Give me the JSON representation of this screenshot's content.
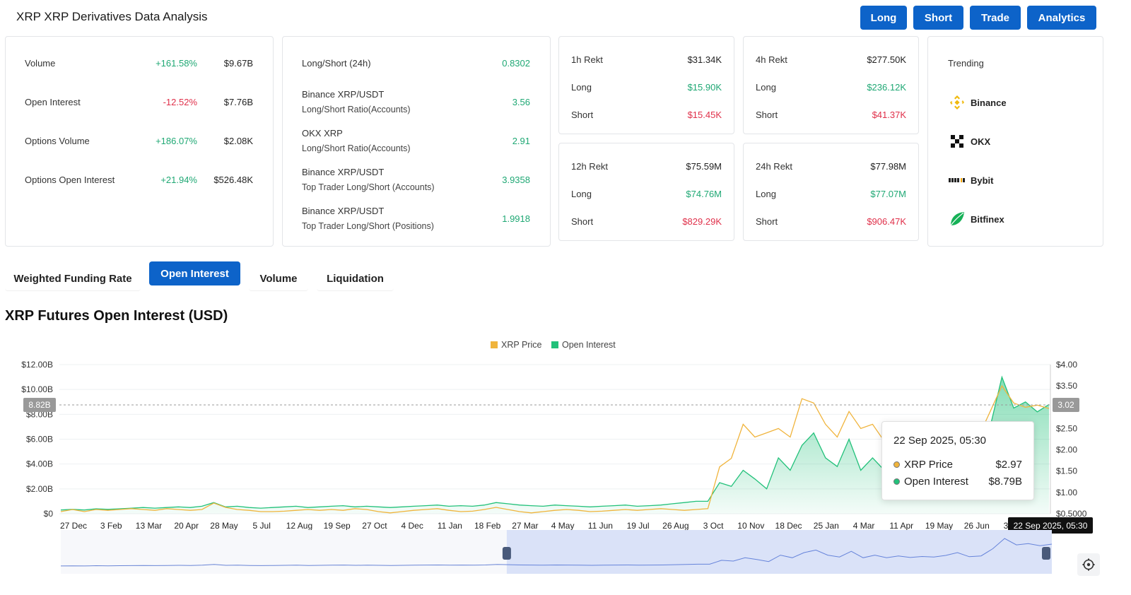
{
  "header": {
    "title": "XRP XRP Derivatives Data Analysis",
    "buttons": [
      "Long",
      "Short",
      "Trade",
      "Analytics"
    ]
  },
  "stats": [
    {
      "label": "Volume",
      "change": "+161.58%",
      "value": "$9.67B",
      "trend": "up"
    },
    {
      "label": "Open Interest",
      "change": "-12.52%",
      "value": "$7.76B",
      "trend": "down"
    },
    {
      "label": "Options Volume",
      "change": "+186.07%",
      "value": "$2.08K",
      "trend": "up"
    },
    {
      "label": "Options Open Interest",
      "change": "+21.94%",
      "value": "$526.48K",
      "trend": "up"
    }
  ],
  "ratios": [
    {
      "label": "Long/Short (24h)",
      "sub": "",
      "value": "0.8302"
    },
    {
      "label": "Binance XRP/USDT",
      "sub": "Long/Short Ratio(Accounts)",
      "value": "3.56"
    },
    {
      "label": "OKX XRP",
      "sub": "Long/Short Ratio(Accounts)",
      "value": "2.91"
    },
    {
      "label": "Binance XRP/USDT",
      "sub": "Top Trader Long/Short (Accounts)",
      "value": "3.9358"
    },
    {
      "label": "Binance XRP/USDT",
      "sub": "Top Trader Long/Short (Positions)",
      "value": "1.9918"
    }
  ],
  "rekt": [
    {
      "label": "1h Rekt",
      "total": "$31.34K",
      "long_label": "Long",
      "long": "$15.90K",
      "short_label": "Short",
      "short": "$15.45K"
    },
    {
      "label": "4h Rekt",
      "total": "$277.50K",
      "long_label": "Long",
      "long": "$236.12K",
      "short_label": "Short",
      "short": "$41.37K"
    },
    {
      "label": "12h Rekt",
      "total": "$75.59M",
      "long_label": "Long",
      "long": "$74.76M",
      "short_label": "Short",
      "short": "$829.29K"
    },
    {
      "label": "24h Rekt",
      "total": "$77.98M",
      "long_label": "Long",
      "long": "$77.07M",
      "short_label": "Short",
      "short": "$906.47K"
    }
  ],
  "trending": {
    "title": "Trending",
    "items": [
      {
        "name": "Binance",
        "icon": "binance-logo-icon"
      },
      {
        "name": "OKX",
        "icon": "okx-logo-icon"
      },
      {
        "name": "Bybit",
        "icon": "bybit-logo-icon"
      },
      {
        "name": "Bitfinex",
        "icon": "bitfinex-logo-icon"
      }
    ]
  },
  "tabs": [
    "Weighted Funding Rate",
    "Open Interest",
    "Volume",
    "Liquidation"
  ],
  "active_tab": "Open Interest",
  "chart_title": "XRP Futures Open Interest (USD)",
  "chart_data": {
    "type": "line",
    "legend": [
      "XRP Price",
      "Open Interest"
    ],
    "legend_position": "top-center",
    "colors": {
      "price": "#f0b43c",
      "oi": "#22c17a",
      "button": "#0d63c9"
    },
    "y_left_ticks": [
      "$12.00B",
      "$10.00B",
      "$8.00B",
      "$6.00B",
      "$4.00B",
      "$2.00B",
      "$0"
    ],
    "y_right_ticks": [
      "$4.00",
      "$3.50",
      "$3.00",
      "$2.50",
      "$2.00",
      "$1.50",
      "$1.00",
      "$0.5000"
    ],
    "x_ticks": [
      "27 Dec",
      "3 Feb",
      "13 Mar",
      "20 Apr",
      "28 May",
      "5 Jul",
      "12 Aug",
      "19 Sep",
      "27 Oct",
      "4 Dec",
      "11 Jan",
      "18 Feb",
      "27 Mar",
      "4 May",
      "11 Jun",
      "19 Jul",
      "26 Aug",
      "3 Oct",
      "10 Nov",
      "18 Dec",
      "25 Jan",
      "4 Mar",
      "11 Apr",
      "19 May",
      "26 Jun",
      "3 Aug"
    ],
    "ylim_left": [
      0,
      12
    ],
    "ylim_right": [
      0.5,
      4
    ],
    "oi_billion": [
      0.3,
      0.35,
      0.3,
      0.4,
      0.35,
      0.4,
      0.45,
      0.5,
      0.45,
      0.5,
      0.55,
      0.5,
      0.6,
      0.9,
      0.55,
      0.6,
      0.5,
      0.45,
      0.5,
      0.55,
      0.6,
      0.5,
      0.55,
      0.6,
      0.65,
      0.55,
      0.6,
      0.55,
      0.5,
      0.55,
      0.6,
      0.65,
      0.7,
      0.6,
      0.65,
      0.6,
      0.7,
      0.9,
      0.8,
      0.7,
      0.65,
      0.6,
      0.7,
      0.65,
      0.6,
      0.55,
      0.6,
      0.65,
      0.7,
      0.6,
      0.65,
      0.7,
      0.8,
      0.9,
      1.0,
      1.0,
      2.5,
      2.2,
      3.5,
      2.8,
      2.0,
      4.5,
      3.5,
      5.5,
      6.5,
      4.5,
      3.8,
      6.0,
      3.5,
      4.5,
      3.5,
      4.2,
      3.6,
      4.0,
      3.8,
      4.4,
      5.5,
      3.9,
      4.2,
      7.0,
      11.0,
      8.5,
      9.0,
      8.2,
      8.79
    ],
    "price_usd": [
      0.55,
      0.6,
      0.55,
      0.6,
      0.58,
      0.6,
      0.62,
      0.6,
      0.58,
      0.62,
      0.6,
      0.58,
      0.6,
      0.75,
      0.65,
      0.6,
      0.58,
      0.55,
      0.55,
      0.56,
      0.58,
      0.6,
      0.58,
      0.6,
      0.58,
      0.62,
      0.6,
      0.55,
      0.52,
      0.55,
      0.58,
      0.6,
      0.62,
      0.58,
      0.55,
      0.56,
      0.6,
      0.65,
      0.6,
      0.55,
      0.52,
      0.55,
      0.58,
      0.6,
      0.58,
      0.55,
      0.56,
      0.58,
      0.6,
      0.58,
      0.6,
      0.62,
      0.6,
      0.58,
      0.6,
      0.62,
      1.6,
      1.8,
      2.6,
      2.3,
      2.4,
      2.5,
      2.3,
      3.2,
      3.1,
      2.6,
      2.3,
      2.9,
      2.5,
      2.6,
      2.2,
      2.3,
      2.1,
      2.2,
      2.4,
      2.2,
      2.3,
      2.2,
      2.3,
      2.9,
      3.5,
      3.1,
      3.0,
      3.05,
      2.97
    ],
    "crosshair": {
      "left_value": "8.82B",
      "right_value": "3.02",
      "date": "22 Sep 2025, 05:30"
    },
    "tooltip": {
      "date": "22 Sep 2025, 05:30",
      "rows": [
        {
          "label": "XRP Price",
          "value": "$2.97"
        },
        {
          "label": "Open Interest",
          "value": "$8.79B"
        }
      ]
    },
    "brush_range": [
      0.45,
      1.0
    ]
  }
}
